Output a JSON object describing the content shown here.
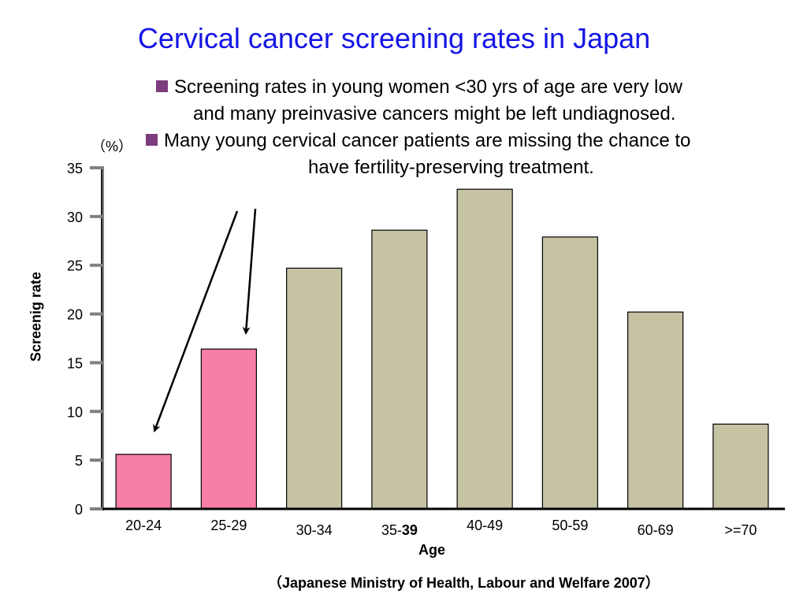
{
  "chart_data": {
    "type": "bar",
    "title": "Cervical cancer screening rates in Japan",
    "xlabel": "Age",
    "ylabel": "Screenig rate",
    "unit_label": "（%）",
    "categories": [
      {
        "pre": "20-24",
        "bold": ""
      },
      {
        "pre": "25-29",
        "bold": ""
      },
      {
        "pre": "30-34",
        "bold": ""
      },
      {
        "pre": "35-",
        "bold": "39"
      },
      {
        "pre": "40-49",
        "bold": ""
      },
      {
        "pre": "50-59",
        "bold": ""
      },
      {
        "pre": "60-69",
        "bold": ""
      },
      {
        "pre": ">=70",
        "bold": ""
      }
    ],
    "values": [
      5.6,
      16.4,
      24.7,
      28.6,
      32.8,
      27.9,
      20.2,
      8.7
    ],
    "highlighted": [
      0,
      1
    ],
    "ylim": [
      0,
      35
    ],
    "yticks": [
      "0",
      "5",
      "10",
      "15",
      "20",
      "25",
      "30",
      "35"
    ],
    "colors": {
      "highlight": "#f77ea8",
      "default": "#c5c3a4",
      "title": "#1414e6",
      "bullet": "#7d3c7d"
    },
    "bullets": [
      [
        "Screening rates in young women <30 yrs of age are very low",
        "and many preinvasive cancers might be left undiagnosed."
      ],
      [
        "Many young cervical cancer patients are missing the chance to",
        "have fertility-preserving treatment."
      ]
    ],
    "source": "（Japanese Ministry of Health, Labour and Welfare  2007）",
    "grid": false,
    "legend": "none"
  }
}
